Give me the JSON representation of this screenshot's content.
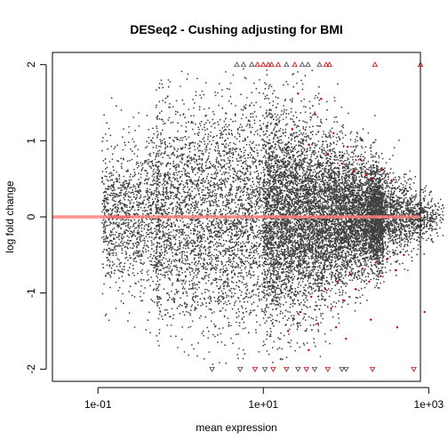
{
  "chart_data": {
    "type": "scatter",
    "title": "DESeq2 - Cushing adjusting for BMI",
    "xlabel": "mean expression",
    "ylabel": "log fold change",
    "x_scale": "log10",
    "xlim_log10": [
      -1.55,
      2.9
    ],
    "ylim": [
      -2.16,
      2.16
    ],
    "x_ticks": [
      {
        "value_log10": -1,
        "label": "1e-01"
      },
      {
        "value_log10": 1,
        "label": "1e+01"
      },
      {
        "value_log10": 3,
        "label": "1e+03"
      }
    ],
    "y_ticks": [
      {
        "value": -2,
        "label": "-2"
      },
      {
        "value": -1,
        "label": "-1"
      },
      {
        "value": 0,
        "label": "0"
      },
      {
        "value": 1,
        "label": "1"
      },
      {
        "value": 2,
        "label": "2"
      }
    ],
    "reference_line": {
      "y": 0,
      "color": "#ff7f7f"
    },
    "colors": {
      "nonsignificant": "#404040",
      "significant": "#cc0000",
      "axis": "#000000"
    },
    "density_model": {
      "nonsignificant_point_count": 14000,
      "x_range_log10": [
        -1.0,
        2.5
      ],
      "note": "MA-plot cloud: fold-change spread shrinks as mean expression increases"
    },
    "significant_points": [
      {
        "log10_mean": 1.35,
        "lfc": 1.15
      },
      {
        "log10_mean": 1.55,
        "lfc": 0.95
      },
      {
        "log10_mean": 1.62,
        "lfc": 1.35
      },
      {
        "log10_mean": 1.78,
        "lfc": 0.82
      },
      {
        "log10_mean": 1.85,
        "lfc": 1.1
      },
      {
        "log10_mean": 1.95,
        "lfc": 0.7
      },
      {
        "log10_mean": 2.02,
        "lfc": 0.92
      },
      {
        "log10_mean": 2.1,
        "lfc": 0.6
      },
      {
        "log10_mean": 2.18,
        "lfc": 0.75
      },
      {
        "log10_mean": 2.25,
        "lfc": 0.55
      },
      {
        "log10_mean": 2.32,
        "lfc": 0.5
      },
      {
        "log10_mean": 2.45,
        "lfc": 0.62
      },
      {
        "log10_mean": 2.55,
        "lfc": 0.48
      },
      {
        "log10_mean": 1.7,
        "lfc": 1.55
      },
      {
        "log10_mean": 1.42,
        "lfc": 1.62
      },
      {
        "log10_mean": 1.3,
        "lfc": -1.5
      },
      {
        "log10_mean": 1.45,
        "lfc": -1.25
      },
      {
        "log10_mean": 1.58,
        "lfc": -1.05
      },
      {
        "log10_mean": 1.66,
        "lfc": -1.4
      },
      {
        "log10_mean": 1.75,
        "lfc": -0.95
      },
      {
        "log10_mean": 1.82,
        "lfc": -1.2
      },
      {
        "log10_mean": 1.9,
        "lfc": -0.85
      },
      {
        "log10_mean": 1.98,
        "lfc": -1.1
      },
      {
        "log10_mean": 2.05,
        "lfc": -0.75
      },
      {
        "log10_mean": 2.12,
        "lfc": -0.95
      },
      {
        "log10_mean": 2.2,
        "lfc": -0.68
      },
      {
        "log10_mean": 2.28,
        "lfc": -0.85
      },
      {
        "log10_mean": 2.36,
        "lfc": -0.6
      },
      {
        "log10_mean": 2.42,
        "lfc": -0.78
      },
      {
        "log10_mean": 2.5,
        "lfc": -0.55
      },
      {
        "log10_mean": 2.6,
        "lfc": -0.7
      },
      {
        "log10_mean": 2.7,
        "lfc": -0.5
      },
      {
        "log10_mean": 2.95,
        "lfc": -1.25
      },
      {
        "log10_mean": 2.62,
        "lfc": -1.45
      },
      {
        "log10_mean": 2.0,
        "lfc": -1.6
      },
      {
        "log10_mean": 1.55,
        "lfc": -1.75
      },
      {
        "log10_mean": 2.3,
        "lfc": -1.35
      },
      {
        "log10_mean": 1.88,
        "lfc": -1.45
      },
      {
        "log10_mean": -0.85,
        "lfc": 0.0
      },
      {
        "log10_mean": -0.75,
        "lfc": 0.0
      },
      {
        "log10_mean": -0.65,
        "lfc": 0.0
      },
      {
        "log10_mean": 3.35,
        "lfc": -1.12
      }
    ],
    "clipped_top": [
      {
        "log10_mean": 0.68,
        "sig": false
      },
      {
        "log10_mean": 0.76,
        "sig": false
      },
      {
        "log10_mean": 0.86,
        "sig": false
      },
      {
        "log10_mean": 0.93,
        "sig": true
      },
      {
        "log10_mean": 1.0,
        "sig": true
      },
      {
        "log10_mean": 1.06,
        "sig": true
      },
      {
        "log10_mean": 1.1,
        "sig": true
      },
      {
        "log10_mean": 1.18,
        "sig": true
      },
      {
        "log10_mean": 1.28,
        "sig": false
      },
      {
        "log10_mean": 1.38,
        "sig": true
      },
      {
        "log10_mean": 1.47,
        "sig": false
      },
      {
        "log10_mean": 1.54,
        "sig": false
      },
      {
        "log10_mean": 1.68,
        "sig": false
      },
      {
        "log10_mean": 1.76,
        "sig": true
      },
      {
        "log10_mean": 1.8,
        "sig": true
      },
      {
        "log10_mean": 2.35,
        "sig": true
      },
      {
        "log10_mean": 2.9,
        "sig": true
      }
    ],
    "clipped_bottom": [
      {
        "log10_mean": 0.38,
        "sig": false
      },
      {
        "log10_mean": 0.72,
        "sig": false
      },
      {
        "log10_mean": 0.9,
        "sig": true
      },
      {
        "log10_mean": 1.02,
        "sig": false
      },
      {
        "log10_mean": 1.12,
        "sig": true
      },
      {
        "log10_mean": 1.28,
        "sig": true
      },
      {
        "log10_mean": 1.42,
        "sig": false
      },
      {
        "log10_mean": 1.52,
        "sig": true
      },
      {
        "log10_mean": 1.62,
        "sig": false
      },
      {
        "log10_mean": 1.78,
        "sig": true
      },
      {
        "log10_mean": 1.95,
        "sig": false
      },
      {
        "log10_mean": 2.0,
        "sig": false
      },
      {
        "log10_mean": 2.32,
        "sig": true
      },
      {
        "log10_mean": 2.82,
        "sig": true
      },
      {
        "log10_mean": 3.72,
        "sig": true
      }
    ]
  }
}
